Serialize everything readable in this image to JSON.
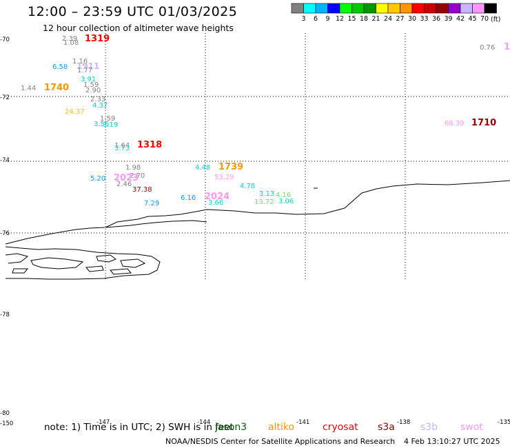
{
  "title": "12:00 – 23:59 UTC 01/03/2025",
  "subtitle": "12 hour collection of altimeter wave heights",
  "legend": {
    "colors": [
      "#808080",
      "#00ffff",
      "#00b4ff",
      "#0000ff",
      "#00ff00",
      "#00c800",
      "#009600",
      "#ffff00",
      "#ffc800",
      "#ff9600",
      "#ff0000",
      "#c80000",
      "#960000",
      "#9600c8",
      "#c8b4ff",
      "#ff96ff",
      "#000000"
    ],
    "labels": [
      "3",
      "6",
      "9",
      "12",
      "15",
      "18",
      "21",
      "24",
      "27",
      "30",
      "33",
      "36",
      "39",
      "42",
      "45",
      "70"
    ],
    "unit": "(ft)"
  },
  "axes": {
    "lat_labels": [
      "-70",
      "-72",
      "-74",
      "-76",
      "-78",
      "-80"
    ],
    "lon_labels": [
      "-150",
      "-147",
      "-144",
      "-141",
      "-138",
      "-135"
    ]
  },
  "observations": [
    {
      "text": "2.39",
      "color": "#808080"
    },
    {
      "text": "1.08",
      "color": "#808080"
    },
    {
      "text": "1319",
      "color": "#ff0000"
    },
    {
      "text": "1.16",
      "color": "#808080"
    },
    {
      "text": "6.58",
      "color": "#00a0ff"
    },
    {
      "text": "1911",
      "color": "#c8b4ff"
    },
    {
      "text": "1.77",
      "color": "#808080"
    },
    {
      "text": "3.91",
      "color": "#00d2d2"
    },
    {
      "text": "1.59",
      "color": "#808080"
    },
    {
      "text": "2.90",
      "color": "#808080"
    },
    {
      "text": "1.44",
      "color": "#808080"
    },
    {
      "text": "1740",
      "color": "#ff9600"
    },
    {
      "text": "2.33",
      "color": "#808080"
    },
    {
      "text": "4.37",
      "color": "#00d2d2"
    },
    {
      "text": "24.37",
      "color": "#f0c800"
    },
    {
      "text": "1.59",
      "color": "#808080"
    },
    {
      "text": "3.56",
      "color": "#00d2d2"
    },
    {
      "text": "3.19",
      "color": "#00d2d2"
    },
    {
      "text": "1.64",
      "color": "#808080"
    },
    {
      "text": "3.73",
      "color": "#00d2d2"
    },
    {
      "text": "1318",
      "color": "#ff0000"
    },
    {
      "text": "1.98",
      "color": "#808080"
    },
    {
      "text": "2.70",
      "color": "#808080"
    },
    {
      "text": "5.20",
      "color": "#00a0ff"
    },
    {
      "text": "2023",
      "color": "#ff96ff"
    },
    {
      "text": "2.46",
      "color": "#808080"
    },
    {
      "text": "37.38",
      "color": "#960000"
    },
    {
      "text": "7.29",
      "color": "#00a0ff"
    },
    {
      "text": "4.48",
      "color": "#00d2d2"
    },
    {
      "text": "1739",
      "color": "#ff9600"
    },
    {
      "text": "53.29",
      "color": "#ff96ff"
    },
    {
      "text": "4.78",
      "color": "#00d2d2"
    },
    {
      "text": "3.13",
      "color": "#00d2d2"
    },
    {
      "text": "4.16",
      "color": "#64e664"
    },
    {
      "text": "13.72",
      "color": "#64e664"
    },
    {
      "text": "3.06",
      "color": "#00d2d2"
    },
    {
      "text": "6.16",
      "color": "#00a0ff"
    },
    {
      "text": "2024",
      "color": "#ff96ff"
    },
    {
      "text": "3.66",
      "color": "#00d2d2"
    },
    {
      "text": "0.76",
      "color": "#808080"
    },
    {
      "text": "1",
      "color": "#ff96ff"
    },
    {
      "text": "68.39",
      "color": "#ff96ff"
    },
    {
      "text": "1710",
      "color": "#960000"
    }
  ],
  "note": "note: 1) Time is in UTC; 2) SWH is in feet",
  "satellites": [
    {
      "name": "jason3",
      "color": "#006400"
    },
    {
      "name": "altiko",
      "color": "#ff9600"
    },
    {
      "name": "cryosat",
      "color": "#ff0000"
    },
    {
      "name": "s3a",
      "color": "#960000"
    },
    {
      "name": "s3b",
      "color": "#c8b4ff"
    },
    {
      "name": "swot",
      "color": "#ff96ff"
    }
  ],
  "credit": "NOAA/NESDIS Center for Satellite Applications and Research",
  "timestamp": "4 Feb 13:10:27 UTC 2025"
}
